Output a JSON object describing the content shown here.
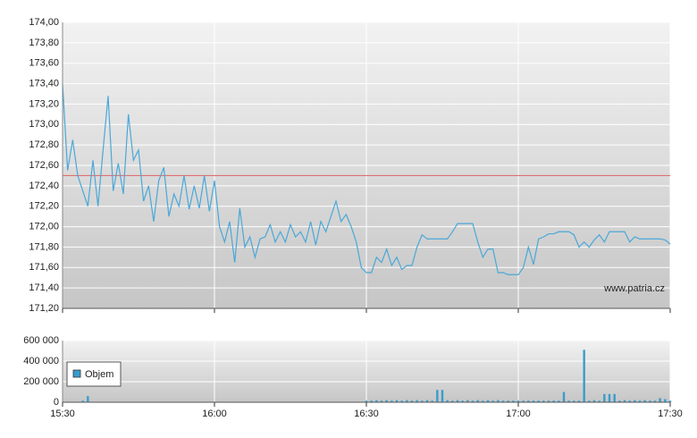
{
  "chart_data": [
    {
      "type": "line",
      "x": [
        "15:30",
        "15:31",
        "15:32",
        "15:33",
        "15:34",
        "15:35",
        "15:36",
        "15:37",
        "15:38",
        "15:39",
        "15:40",
        "15:41",
        "15:42",
        "15:43",
        "15:44",
        "15:45",
        "15:46",
        "15:47",
        "15:48",
        "15:49",
        "15:50",
        "15:51",
        "15:52",
        "15:53",
        "15:54",
        "15:55",
        "15:56",
        "15:57",
        "15:58",
        "15:59",
        "16:00",
        "16:01",
        "16:02",
        "16:03",
        "16:04",
        "16:05",
        "16:06",
        "16:07",
        "16:08",
        "16:09",
        "16:10",
        "16:11",
        "16:12",
        "16:13",
        "16:14",
        "16:15",
        "16:16",
        "16:17",
        "16:18",
        "16:19",
        "16:20",
        "16:21",
        "16:22",
        "16:23",
        "16:24",
        "16:25",
        "16:26",
        "16:27",
        "16:28",
        "16:29",
        "16:30",
        "16:31",
        "16:32",
        "16:33",
        "16:34",
        "16:35",
        "16:36",
        "16:37",
        "16:38",
        "16:39",
        "16:40",
        "16:41",
        "16:42",
        "16:43",
        "16:44",
        "16:45",
        "16:46",
        "16:47",
        "16:48",
        "16:49",
        "16:50",
        "16:51",
        "16:52",
        "16:53",
        "16:54",
        "16:55",
        "16:56",
        "16:57",
        "16:58",
        "16:59",
        "17:00",
        "17:01",
        "17:02",
        "17:03",
        "17:04",
        "17:05",
        "17:06",
        "17:07",
        "17:08",
        "17:09",
        "17:10",
        "17:11",
        "17:12",
        "17:13",
        "17:14",
        "17:15",
        "17:16",
        "17:17",
        "17:18",
        "17:19",
        "17:20",
        "17:21",
        "17:22",
        "17:23",
        "17:24",
        "17:25",
        "17:26",
        "17:27",
        "17:28",
        "17:29",
        "17:30"
      ],
      "series": [
        {
          "color": "#4aa8d8",
          "values": [
            173.4,
            172.55,
            172.85,
            172.5,
            172.35,
            172.2,
            172.65,
            172.2,
            172.75,
            173.28,
            172.35,
            172.62,
            172.32,
            173.1,
            172.65,
            172.75,
            172.25,
            172.4,
            172.05,
            172.45,
            172.58,
            172.1,
            172.32,
            172.2,
            172.5,
            172.17,
            172.4,
            172.18,
            172.5,
            172.15,
            172.45,
            172.0,
            171.85,
            172.05,
            171.65,
            172.18,
            171.8,
            171.9,
            171.7,
            171.88,
            171.9,
            172.02,
            171.85,
            171.95,
            171.85,
            172.02,
            171.9,
            171.95,
            171.85,
            172.05,
            171.82,
            172.05,
            171.95,
            172.1,
            172.25,
            172.05,
            172.12,
            172.0,
            171.85,
            171.6,
            171.55,
            171.55,
            171.7,
            171.65,
            171.78,
            171.62,
            171.7,
            171.58,
            171.62,
            171.62,
            171.8,
            171.92,
            171.88,
            171.88,
            171.88,
            171.88,
            171.88,
            171.95,
            172.03,
            172.03,
            172.03,
            172.03,
            171.85,
            171.7,
            171.78,
            171.78,
            171.55,
            171.55,
            171.53,
            171.53,
            171.53,
            171.6,
            171.8,
            171.63,
            171.88,
            171.9,
            171.93,
            171.93,
            171.95,
            171.95,
            171.95,
            171.92,
            171.8,
            171.85,
            171.8,
            171.87,
            171.92,
            171.85,
            171.95,
            171.95,
            171.95,
            171.95,
            171.85,
            171.9,
            171.88,
            171.88,
            171.88,
            171.88,
            171.88,
            171.87,
            171.83
          ]
        }
      ],
      "reference_line": 172.5,
      "reference_color": "#e07070",
      "xlim": [
        "15:30",
        "17:30"
      ],
      "xticks": [
        "15:30",
        "16:00",
        "16:30",
        "17:00",
        "17:30"
      ],
      "ylim": [
        171.2,
        174
      ],
      "yticks": [
        {
          "value": 171.2,
          "label": "171,20"
        },
        {
          "value": 171.4,
          "label": "171,40"
        },
        {
          "value": 171.6,
          "label": "171,60"
        },
        {
          "value": 171.8,
          "label": "171,80"
        },
        {
          "value": 172,
          "label": "172,00"
        },
        {
          "value": 172.2,
          "label": "172,20"
        },
        {
          "value": 172.4,
          "label": "172,40"
        },
        {
          "value": 172.6,
          "label": "172,60"
        },
        {
          "value": 172.8,
          "label": "172,80"
        },
        {
          "value": 173,
          "label": "173,00"
        },
        {
          "value": 173.2,
          "label": "173,20"
        },
        {
          "value": 173.4,
          "label": "173,40"
        },
        {
          "value": 173.6,
          "label": "173,60"
        },
        {
          "value": 173.8,
          "label": "173,80"
        },
        {
          "value": 174,
          "label": "174,00"
        }
      ],
      "grid": true,
      "watermark": "www.patria.cz"
    },
    {
      "type": "bar",
      "x": [
        "15:30",
        "15:31",
        "15:32",
        "15:33",
        "15:34",
        "15:35",
        "15:36",
        "15:37",
        "15:38",
        "15:39",
        "15:40",
        "15:41",
        "15:42",
        "15:43",
        "15:44",
        "15:45",
        "15:46",
        "15:47",
        "15:48",
        "15:49",
        "15:50",
        "15:51",
        "15:52",
        "15:53",
        "15:54",
        "15:55",
        "15:56",
        "15:57",
        "15:58",
        "15:59",
        "16:00",
        "16:01",
        "16:02",
        "16:03",
        "16:04",
        "16:05",
        "16:06",
        "16:07",
        "16:08",
        "16:09",
        "16:10",
        "16:11",
        "16:12",
        "16:13",
        "16:14",
        "16:15",
        "16:16",
        "16:17",
        "16:18",
        "16:19",
        "16:20",
        "16:21",
        "16:22",
        "16:23",
        "16:24",
        "16:25",
        "16:26",
        "16:27",
        "16:28",
        "16:29",
        "16:30",
        "16:31",
        "16:32",
        "16:33",
        "16:34",
        "16:35",
        "16:36",
        "16:37",
        "16:38",
        "16:39",
        "16:40",
        "16:41",
        "16:42",
        "16:43",
        "16:44",
        "16:45",
        "16:46",
        "16:47",
        "16:48",
        "16:49",
        "16:50",
        "16:51",
        "16:52",
        "16:53",
        "16:54",
        "16:55",
        "16:56",
        "16:57",
        "16:58",
        "16:59",
        "17:00",
        "17:01",
        "17:02",
        "17:03",
        "17:04",
        "17:05",
        "17:06",
        "17:07",
        "17:08",
        "17:09",
        "17:10",
        "17:11",
        "17:12",
        "17:13",
        "17:14",
        "17:15",
        "17:16",
        "17:17",
        "17:18",
        "17:19",
        "17:20",
        "17:21",
        "17:22",
        "17:23",
        "17:24",
        "17:25",
        "17:26",
        "17:27",
        "17:28",
        "17:29",
        "17:30"
      ],
      "series": [
        {
          "name": "Objem",
          "color": "#3a9ccc",
          "values": [
            0,
            0,
            0,
            0,
            15000,
            60000,
            0,
            0,
            0,
            0,
            0,
            0,
            5000,
            0,
            0,
            0,
            0,
            0,
            0,
            0,
            0,
            0,
            0,
            0,
            0,
            0,
            0,
            0,
            0,
            0,
            5000,
            0,
            0,
            0,
            5000,
            0,
            0,
            0,
            0,
            0,
            0,
            0,
            0,
            0,
            0,
            0,
            0,
            0,
            0,
            5000,
            0,
            0,
            0,
            0,
            0,
            5000,
            0,
            0,
            0,
            0,
            15000,
            15000,
            20000,
            15000,
            20000,
            15000,
            20000,
            15000,
            20000,
            15000,
            20000,
            15000,
            20000,
            15000,
            120000,
            120000,
            20000,
            15000,
            20000,
            15000,
            20000,
            15000,
            20000,
            15000,
            20000,
            15000,
            20000,
            15000,
            15000,
            15000,
            15000,
            15000,
            15000,
            15000,
            15000,
            15000,
            15000,
            15000,
            15000,
            100000,
            15000,
            15000,
            15000,
            510000,
            15000,
            20000,
            15000,
            80000,
            80000,
            80000,
            15000,
            20000,
            15000,
            20000,
            15000,
            20000,
            15000,
            15000,
            40000,
            30000,
            15000
          ]
        }
      ],
      "xlim": [
        "15:30",
        "17:30"
      ],
      "xticks": [
        "15:30",
        "16:00",
        "16:30",
        "17:00",
        "17:30"
      ],
      "ylim": [
        0,
        600000
      ],
      "yticks": [
        0,
        {
          "value": 200000,
          "label": "200 000"
        },
        {
          "value": 400000,
          "label": "400 000"
        },
        {
          "value": 600000,
          "label": "600 000"
        }
      ],
      "grid": true
    }
  ]
}
